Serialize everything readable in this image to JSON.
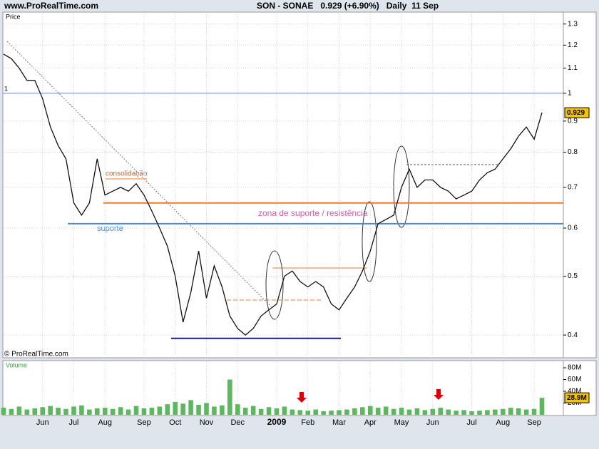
{
  "chart_data": {
    "type": "line",
    "site": "www.ProRealTime.com",
    "title": "SON - SONAE   0.929 (+6.90%)   Daily  11 Sep",
    "price_label": "Price",
    "volume_label": "Volume",
    "copyright": "© ProRealTime.com",
    "annotations": [
      "consolidação",
      "suporte",
      "zona de suporte / resistência",
      "1"
    ],
    "categories": [
      null,
      null,
      null,
      null,
      null,
      "Jun",
      null,
      null,
      null,
      "Jul",
      null,
      null,
      null,
      "Aug",
      null,
      null,
      null,
      null,
      "Sep",
      null,
      null,
      null,
      "Oct",
      null,
      null,
      null,
      "Nov",
      null,
      null,
      null,
      "Dec",
      null,
      null,
      null,
      null,
      "2009",
      null,
      null,
      null,
      "Feb",
      null,
      null,
      null,
      "Mar",
      null,
      null,
      null,
      "Apr",
      null,
      null,
      null,
      "May",
      null,
      null,
      null,
      "Jun",
      null,
      null,
      null,
      null,
      "Jul",
      null,
      null,
      null,
      "Aug",
      null,
      null,
      null,
      "Sep",
      null
    ],
    "log_scale": true,
    "ylim": [
      0.369,
      1.36
    ],
    "yticks": [
      0.4,
      0.5,
      0.6,
      0.7,
      0.8,
      0.9,
      1,
      1.1,
      1.2,
      1.3
    ],
    "levels": [
      {
        "value": 1,
        "color": "#6a8fd8"
      },
      {
        "value": 0.66,
        "color": "#f07a30"
      },
      {
        "value": 0.61,
        "color": "#4a86e8"
      },
      {
        "value": 0.395,
        "color": "#1a1a8c"
      }
    ],
    "series": [
      {
        "name": "SON",
        "color": "#111111",
        "values": [
          1.16,
          1.14,
          1.1,
          1.05,
          1.05,
          0.98,
          0.88,
          0.82,
          0.78,
          0.66,
          0.63,
          0.66,
          0.78,
          0.68,
          0.69,
          0.7,
          0.69,
          0.71,
          0.68,
          0.64,
          0.6,
          0.56,
          0.5,
          0.42,
          0.47,
          0.55,
          0.46,
          0.52,
          0.48,
          0.43,
          0.41,
          0.4,
          0.41,
          0.43,
          0.44,
          0.45,
          0.5,
          0.51,
          0.49,
          0.48,
          0.49,
          0.48,
          0.45,
          0.44,
          0.46,
          0.48,
          0.51,
          0.55,
          0.61,
          0.62,
          0.63,
          0.7,
          0.75,
          0.7,
          0.72,
          0.72,
          0.7,
          0.69,
          0.67,
          0.68,
          0.69,
          0.72,
          0.74,
          0.75,
          0.78,
          0.81,
          0.85,
          0.88,
          0.84,
          0.929
        ]
      }
    ],
    "volume": {
      "color": "#5cb85c",
      "values": [
        12,
        10,
        14,
        9,
        11,
        13,
        15,
        12,
        10,
        14,
        16,
        9,
        11,
        12,
        10,
        13,
        9,
        15,
        11,
        12,
        14,
        18,
        22,
        19,
        25,
        17,
        20,
        14,
        16,
        60,
        18,
        12,
        15,
        10,
        13,
        11,
        14,
        9,
        8,
        7,
        9,
        6,
        7,
        8,
        9,
        11,
        13,
        15,
        12,
        14,
        10,
        12,
        9,
        11,
        8,
        10,
        12,
        9,
        7,
        8,
        6,
        7,
        8,
        9,
        10,
        12,
        11,
        9,
        10,
        28.9
      ],
      "last_label": "28.9M",
      "ylim": [
        0,
        91
      ],
      "yticks": [
        {
          "value": 20,
          "label": "20M"
        },
        {
          "value": 40,
          "label": "40M"
        },
        {
          "value": 60,
          "label": "60M"
        },
        {
          "value": 80,
          "label": "80M"
        }
      ]
    }
  }
}
